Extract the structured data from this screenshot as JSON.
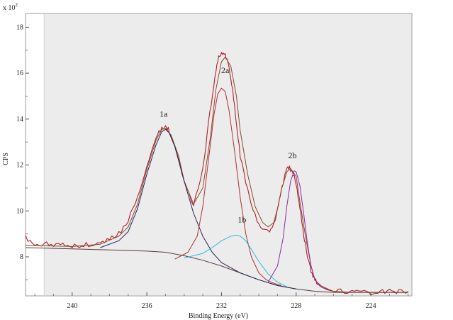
{
  "chart_data": {
    "type": "line",
    "title": "",
    "xlabel": "Binding Energy (eV)",
    "ylabel": "CPS",
    "y_multiplier_label": "x 10",
    "y_multiplier_exp": "2",
    "xlim": [
      242.5,
      221.8
    ],
    "ylim": [
      6.3,
      18.6
    ],
    "x_reversed": true,
    "x_ticks": [
      240,
      236,
      232,
      228,
      224
    ],
    "y_ticks": [
      8,
      10,
      12,
      14,
      16,
      18
    ],
    "grid": false,
    "shaded_region": [
      241.5,
      221.8
    ],
    "series": [
      {
        "key": "measured",
        "color": "#b0202a",
        "x": [
          242.5,
          242.0,
          241.5,
          241.0,
          240.5,
          240.0,
          239.5,
          239.0,
          238.5,
          238.0,
          237.5,
          237.0,
          236.5,
          236.0,
          235.5,
          235.2,
          235.0,
          234.8,
          234.5,
          234.0,
          233.5,
          233.0,
          232.7,
          232.4,
          232.2,
          232.0,
          231.8,
          231.6,
          231.4,
          231.2,
          231.0,
          230.6,
          230.2,
          229.8,
          229.5,
          229.2,
          229.0,
          228.8,
          228.6,
          228.4,
          228.2,
          228.0,
          227.8,
          227.6,
          227.4,
          227.2,
          227.0,
          226.8,
          226.5,
          226.0,
          225.5,
          225.0,
          224.5,
          224.0,
          223.5,
          223.0,
          222.5,
          222.0
        ],
        "values": [
          8.9,
          8.4,
          8.6,
          8.45,
          8.6,
          8.5,
          8.5,
          8.55,
          8.6,
          8.75,
          9.0,
          9.6,
          10.6,
          12.0,
          13.2,
          13.6,
          13.7,
          13.5,
          12.8,
          11.2,
          10.2,
          11.8,
          13.8,
          15.6,
          16.6,
          16.85,
          16.8,
          16.3,
          15.3,
          13.8,
          12.4,
          10.9,
          9.8,
          9.2,
          9.1,
          9.4,
          10.0,
          10.9,
          11.6,
          11.9,
          11.7,
          11.2,
          10.2,
          9.0,
          8.0,
          7.4,
          7.0,
          6.8,
          6.65,
          6.55,
          6.5,
          6.45,
          6.5,
          6.45,
          6.5,
          6.5,
          6.5,
          6.5
        ]
      },
      {
        "key": "envelope",
        "color": "#8a4a2a",
        "x": [
          242.5,
          240.0,
          238.5,
          237.5,
          237.0,
          236.5,
          236.0,
          235.5,
          235.2,
          235.0,
          234.7,
          234.3,
          234.0,
          233.5,
          233.0,
          232.6,
          232.3,
          232.0,
          231.8,
          231.5,
          231.2,
          231.0,
          230.6,
          230.2,
          229.8,
          229.5,
          229.2,
          229.0,
          228.8,
          228.5,
          228.3,
          228.0,
          227.8,
          227.5,
          227.2,
          227.0,
          226.7,
          226.3,
          226.0,
          225.0,
          224.0,
          222.0
        ],
        "values": [
          8.5,
          8.45,
          8.55,
          8.9,
          9.3,
          10.3,
          11.8,
          13.1,
          13.55,
          13.6,
          13.3,
          12.4,
          11.3,
          10.3,
          11.0,
          13.2,
          15.3,
          16.5,
          16.7,
          16.3,
          15.0,
          13.5,
          11.6,
          10.2,
          9.5,
          9.3,
          9.5,
          10.1,
          10.9,
          11.7,
          11.85,
          11.5,
          10.4,
          8.9,
          7.6,
          7.0,
          6.75,
          6.6,
          6.5,
          6.45,
          6.45,
          6.45
        ]
      },
      {
        "key": "background",
        "color": "#5a3a3a",
        "x": [
          242.5,
          240.0,
          238.0,
          236.0,
          235.0,
          234.0,
          233.0,
          232.0,
          231.0,
          230.0,
          229.0,
          228.0,
          227.0,
          226.0,
          225.0,
          224.0,
          222.0
        ],
        "values": [
          8.4,
          8.35,
          8.3,
          8.25,
          8.2,
          8.05,
          7.85,
          7.6,
          7.3,
          7.0,
          6.75,
          6.6,
          6.5,
          6.45,
          6.45,
          6.45,
          6.45
        ]
      },
      {
        "key": "1a",
        "color": "#24245a",
        "x": [
          238.5,
          237.5,
          237.0,
          236.5,
          236.0,
          235.5,
          235.2,
          235.0,
          234.8,
          234.5,
          234.0,
          233.5,
          233.0,
          232.5,
          232.0,
          231.0,
          230.0,
          229.0,
          228.0
        ],
        "values": [
          8.4,
          8.7,
          9.1,
          10.1,
          11.6,
          12.9,
          13.45,
          13.55,
          13.4,
          12.8,
          11.3,
          9.9,
          8.9,
          8.2,
          7.75,
          7.3,
          7.0,
          6.75,
          6.6
        ]
      },
      {
        "key": "2a",
        "color": "#b03030",
        "x": [
          234.5,
          233.8,
          233.3,
          233.0,
          232.7,
          232.4,
          232.2,
          232.0,
          231.8,
          231.6,
          231.3,
          231.0,
          230.7,
          230.4,
          230.0,
          229.6,
          229.2,
          228.8
        ],
        "values": [
          7.9,
          8.2,
          8.9,
          10.2,
          12.2,
          14.2,
          15.1,
          15.35,
          15.2,
          14.4,
          12.6,
          10.6,
          9.0,
          8.0,
          7.3,
          7.0,
          6.85,
          6.75
        ]
      },
      {
        "key": "1b",
        "color": "#30b8d8",
        "x": [
          234.0,
          233.0,
          232.5,
          232.0,
          231.5,
          231.2,
          231.0,
          230.7,
          230.3,
          230.0,
          229.5,
          229.0,
          228.5
        ],
        "values": [
          7.95,
          8.15,
          8.4,
          8.7,
          8.9,
          8.95,
          8.9,
          8.7,
          8.2,
          7.8,
          7.25,
          6.9,
          6.7
        ]
      },
      {
        "key": "2b",
        "color": "#8a2aa8",
        "x": [
          229.5,
          229.0,
          228.7,
          228.5,
          228.3,
          228.1,
          228.0,
          227.8,
          227.6,
          227.4,
          227.2,
          227.0,
          226.7,
          226.3
        ],
        "values": [
          6.9,
          7.6,
          8.8,
          10.2,
          11.3,
          11.75,
          11.7,
          11.1,
          9.9,
          8.6,
          7.6,
          7.0,
          6.7,
          6.55
        ]
      }
    ],
    "annotations": [
      {
        "text": "1a",
        "x": 235.1,
        "y": 14.1
      },
      {
        "text": "2a",
        "x": 231.8,
        "y": 16.0
      },
      {
        "text": "1b",
        "x": 230.9,
        "y": 9.5
      },
      {
        "text": "2b",
        "x": 228.2,
        "y": 12.3
      }
    ]
  }
}
